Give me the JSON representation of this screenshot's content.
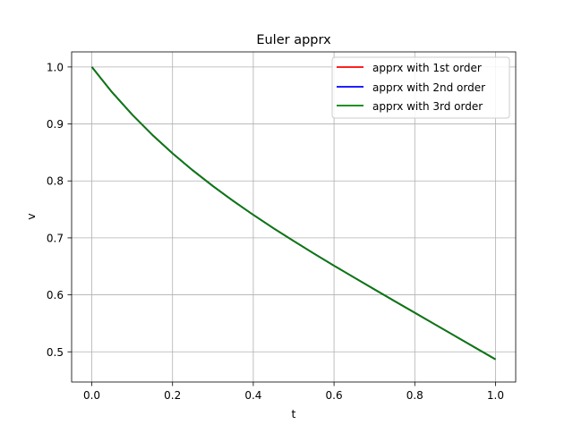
{
  "chart_data": {
    "type": "line",
    "title": "Euler apprx",
    "xlabel": "t",
    "ylabel": "v",
    "xlim": [
      -0.05,
      1.05
    ],
    "ylim": [
      0.447,
      1.0265
    ],
    "xticks": [
      "0.0",
      "0.2",
      "0.4",
      "0.6",
      "0.8",
      "1.0"
    ],
    "yticks": [
      "0.5",
      "0.6",
      "0.7",
      "0.8",
      "0.9",
      "1.0"
    ],
    "grid": true,
    "legend_position": "top-right",
    "x": [
      0.0,
      0.05,
      0.1,
      0.15,
      0.2,
      0.25,
      0.3,
      0.35,
      0.4,
      0.45,
      0.5,
      0.55,
      0.6,
      0.65,
      0.7,
      0.75,
      0.8,
      0.85,
      0.9,
      0.95,
      1.0
    ],
    "series": [
      {
        "name": "apprx with 1st order",
        "color": "#ff0000",
        "values": [
          1.0,
          0.9558,
          0.9164,
          0.8808,
          0.8484,
          0.8186,
          0.7909,
          0.765,
          0.7404,
          0.717,
          0.6945,
          0.6726,
          0.6512,
          0.6303,
          0.6096,
          0.589,
          0.5686,
          0.5481,
          0.5277,
          0.5072,
          0.4868
        ]
      },
      {
        "name": "apprx with 2nd order",
        "color": "#0000ff",
        "values": [
          1.0,
          0.9558,
          0.9164,
          0.8808,
          0.8484,
          0.8186,
          0.7909,
          0.765,
          0.7404,
          0.717,
          0.6945,
          0.6726,
          0.6512,
          0.6303,
          0.6096,
          0.589,
          0.5686,
          0.5481,
          0.5277,
          0.5072,
          0.4868
        ]
      },
      {
        "name": "apprx with 3rd order",
        "color": "#008000",
        "values": [
          1.0,
          0.9558,
          0.9164,
          0.8808,
          0.8484,
          0.8186,
          0.7909,
          0.765,
          0.7404,
          0.717,
          0.6945,
          0.6726,
          0.6512,
          0.6303,
          0.6096,
          0.589,
          0.5686,
          0.5481,
          0.5277,
          0.5072,
          0.4868
        ]
      }
    ]
  }
}
